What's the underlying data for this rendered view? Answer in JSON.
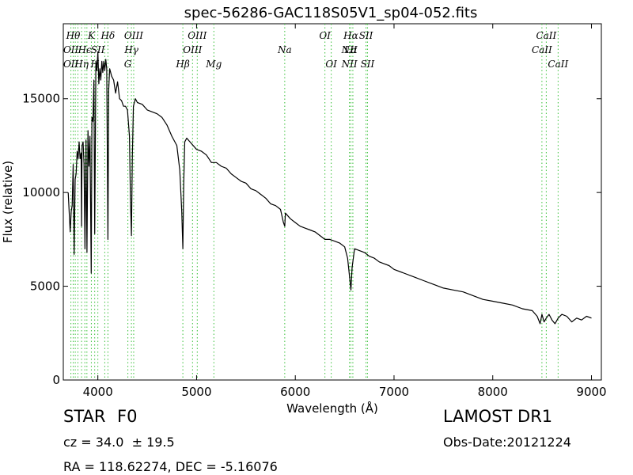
{
  "chart_data": {
    "type": "line",
    "title": "spec-56286-GAC118S05V1_sp04-052.fits",
    "xlabel": "Wavelength (Å)",
    "ylabel": "Flux (relative)",
    "xlim": [
      3650,
      9100
    ],
    "ylim": [
      0,
      19000
    ],
    "xticks": [
      {
        "value": 4000,
        "label": "4000"
      },
      {
        "value": 5000,
        "label": "5000"
      },
      {
        "value": 6000,
        "label": "6000"
      },
      {
        "value": 7000,
        "label": "7000"
      },
      {
        "value": 8000,
        "label": "8000"
      },
      {
        "value": 9000,
        "label": "9000"
      }
    ],
    "yticks": [
      {
        "value": 0,
        "label": "0"
      },
      {
        "value": 5000,
        "label": "5000"
      },
      {
        "value": 10000,
        "label": "10000"
      },
      {
        "value": 15000,
        "label": "15000"
      }
    ],
    "grid": false,
    "series": [
      {
        "color": "#000000",
        "x": [
          3700,
          3720,
          3730,
          3740,
          3750,
          3760,
          3770,
          3780,
          3790,
          3800,
          3810,
          3820,
          3830,
          3835,
          3840,
          3850,
          3860,
          3870,
          3880,
          3890,
          3900,
          3910,
          3920,
          3933,
          3940,
          3950,
          3960,
          3968,
          3980,
          3990,
          4000,
          4010,
          4020,
          4030,
          4040,
          4050,
          4060,
          4070,
          4080,
          4090,
          4102,
          4110,
          4120,
          4140,
          4160,
          4180,
          4200,
          4220,
          4240,
          4260,
          4280,
          4300,
          4320,
          4330,
          4340,
          4350,
          4360,
          4380,
          4400,
          4450,
          4500,
          4550,
          4600,
          4650,
          4700,
          4750,
          4800,
          4830,
          4850,
          4861,
          4870,
          4880,
          4900,
          4950,
          5000,
          5050,
          5100,
          5150,
          5200,
          5250,
          5300,
          5350,
          5400,
          5450,
          5500,
          5550,
          5600,
          5650,
          5700,
          5750,
          5800,
          5850,
          5880,
          5893,
          5900,
          5950,
          6000,
          6050,
          6100,
          6150,
          6200,
          6250,
          6300,
          6350,
          6400,
          6450,
          6500,
          6530,
          6550,
          6563,
          6575,
          6600,
          6650,
          6700,
          6750,
          6800,
          6850,
          6900,
          6950,
          7000,
          7100,
          7200,
          7300,
          7400,
          7500,
          7600,
          7700,
          7800,
          7900,
          8000,
          8100,
          8200,
          8300,
          8400,
          8450,
          8480,
          8498,
          8520,
          8542,
          8570,
          8600,
          8630,
          8662,
          8700,
          8750,
          8800,
          8850,
          8900,
          8950,
          9000
        ],
        "y": [
          10000,
          7900,
          9000,
          9300,
          11500,
          6700,
          10700,
          11000,
          12200,
          11800,
          12700,
          11800,
          12100,
          8200,
          12500,
          12700,
          11500,
          7000,
          12800,
          6800,
          13300,
          11400,
          13000,
          5700,
          14000,
          13800,
          16000,
          7800,
          17000,
          16500,
          17500,
          15800,
          16600,
          16000,
          17000,
          16400,
          17000,
          16500,
          17100,
          16600,
          7500,
          15500,
          16600,
          16200,
          16000,
          15300,
          15900,
          15000,
          14900,
          14600,
          14600,
          14400,
          13000,
          9800,
          7700,
          12000,
          14600,
          15000,
          14800,
          14700,
          14400,
          14300,
          14200,
          14000,
          13600,
          13000,
          12500,
          11200,
          9000,
          7000,
          10500,
          12700,
          12900,
          12600,
          12300,
          12200,
          12000,
          11600,
          11600,
          11400,
          11300,
          11000,
          10800,
          10600,
          10500,
          10200,
          10100,
          9900,
          9700,
          9400,
          9300,
          9100,
          8400,
          8200,
          8900,
          8600,
          8400,
          8200,
          8100,
          8000,
          7900,
          7700,
          7500,
          7500,
          7400,
          7300,
          7100,
          6500,
          5500,
          4800,
          6000,
          7000,
          6900,
          6800,
          6600,
          6500,
          6300,
          6200,
          6100,
          5900,
          5700,
          5500,
          5300,
          5100,
          4900,
          4800,
          4700,
          4500,
          4300,
          4200,
          4100,
          4000,
          3800,
          3700,
          3400,
          3000,
          3500,
          3100,
          3300,
          3500,
          3200,
          3000,
          3300,
          3500,
          3400,
          3100,
          3300,
          3200,
          3400,
          3300
        ]
      }
    ],
    "lines": {
      "color": "#38c038",
      "items": [
        {
          "wl": 3727,
          "labels": [
            {
              "text": "OII",
              "row": 1
            },
            {
              "text": "OII",
              "row": 2
            }
          ]
        },
        {
          "wl": 3750,
          "labels": [
            {
              "text": "Hθ",
              "row": 0
            }
          ]
        },
        {
          "wl": 3771,
          "labels": []
        },
        {
          "wl": 3798,
          "labels": []
        },
        {
          "wl": 3835,
          "labels": [
            {
              "text": "Hη",
              "row": 2
            }
          ]
        },
        {
          "wl": 3868,
          "labels": [
            {
              "text": "Hϵ",
              "row": 1
            }
          ]
        },
        {
          "wl": 3889,
          "labels": []
        },
        {
          "wl": 3934,
          "labels": [
            {
              "text": "K",
              "row": 0
            }
          ]
        },
        {
          "wl": 3968,
          "labels": [
            {
              "text": "H",
              "row": 2
            }
          ]
        },
        {
          "wl": 4000,
          "labels": [
            {
              "text": "SII",
              "row": 1
            }
          ]
        },
        {
          "wl": 4070,
          "labels": []
        },
        {
          "wl": 4102,
          "labels": [
            {
              "text": "Hδ",
              "row": 0
            }
          ]
        },
        {
          "wl": 4304,
          "labels": [
            {
              "text": "G",
              "row": 2
            }
          ]
        },
        {
          "wl": 4340,
          "labels": [
            {
              "text": "Hγ",
              "row": 1
            }
          ]
        },
        {
          "wl": 4363,
          "labels": [
            {
              "text": "OIII",
              "row": 0
            }
          ]
        },
        {
          "wl": 4861,
          "labels": [
            {
              "text": "Hβ",
              "row": 2
            }
          ]
        },
        {
          "wl": 4959,
          "labels": [
            {
              "text": "OIII",
              "row": 1
            }
          ]
        },
        {
          "wl": 5007,
          "labels": [
            {
              "text": "OIII",
              "row": 0
            }
          ]
        },
        {
          "wl": 5175,
          "labels": [
            {
              "text": "Mg",
              "row": 2
            }
          ]
        },
        {
          "wl": 5893,
          "labels": [
            {
              "text": "Na",
              "row": 1
            }
          ]
        },
        {
          "wl": 6300,
          "labels": [
            {
              "text": "OI",
              "row": 0
            }
          ]
        },
        {
          "wl": 6364,
          "labels": [
            {
              "text": "OI",
              "row": 2
            }
          ]
        },
        {
          "wl": 6548,
          "labels": [
            {
              "text": "NII",
              "row": 1
            },
            {
              "text": "NII",
              "row": 2
            }
          ]
        },
        {
          "wl": 6563,
          "labels": [
            {
              "text": "Hα",
              "row": 0
            },
            {
              "text": "Lα",
              "row": 1
            }
          ]
        },
        {
          "wl": 6583,
          "labels": []
        },
        {
          "wl": 6716,
          "labels": [
            {
              "text": "SII",
              "row": 0
            }
          ]
        },
        {
          "wl": 6731,
          "labels": [
            {
              "text": "SII",
              "row": 2
            }
          ]
        },
        {
          "wl": 8498,
          "labels": [
            {
              "text": "CaII",
              "row": 1
            }
          ]
        },
        {
          "wl": 8542,
          "labels": [
            {
              "text": "CaII",
              "row": 0
            }
          ]
        },
        {
          "wl": 8662,
          "labels": [
            {
              "text": "CaII",
              "row": 2
            }
          ]
        }
      ]
    }
  },
  "info": {
    "class_label": "STAR",
    "subclass": "F0",
    "survey": "LAMOST DR1",
    "cz_text": "cz = 34.0  ± 19.5",
    "obs_date": "Obs-Date:20121224",
    "coords": "RA = 118.62274, DEC = -5.16076"
  }
}
